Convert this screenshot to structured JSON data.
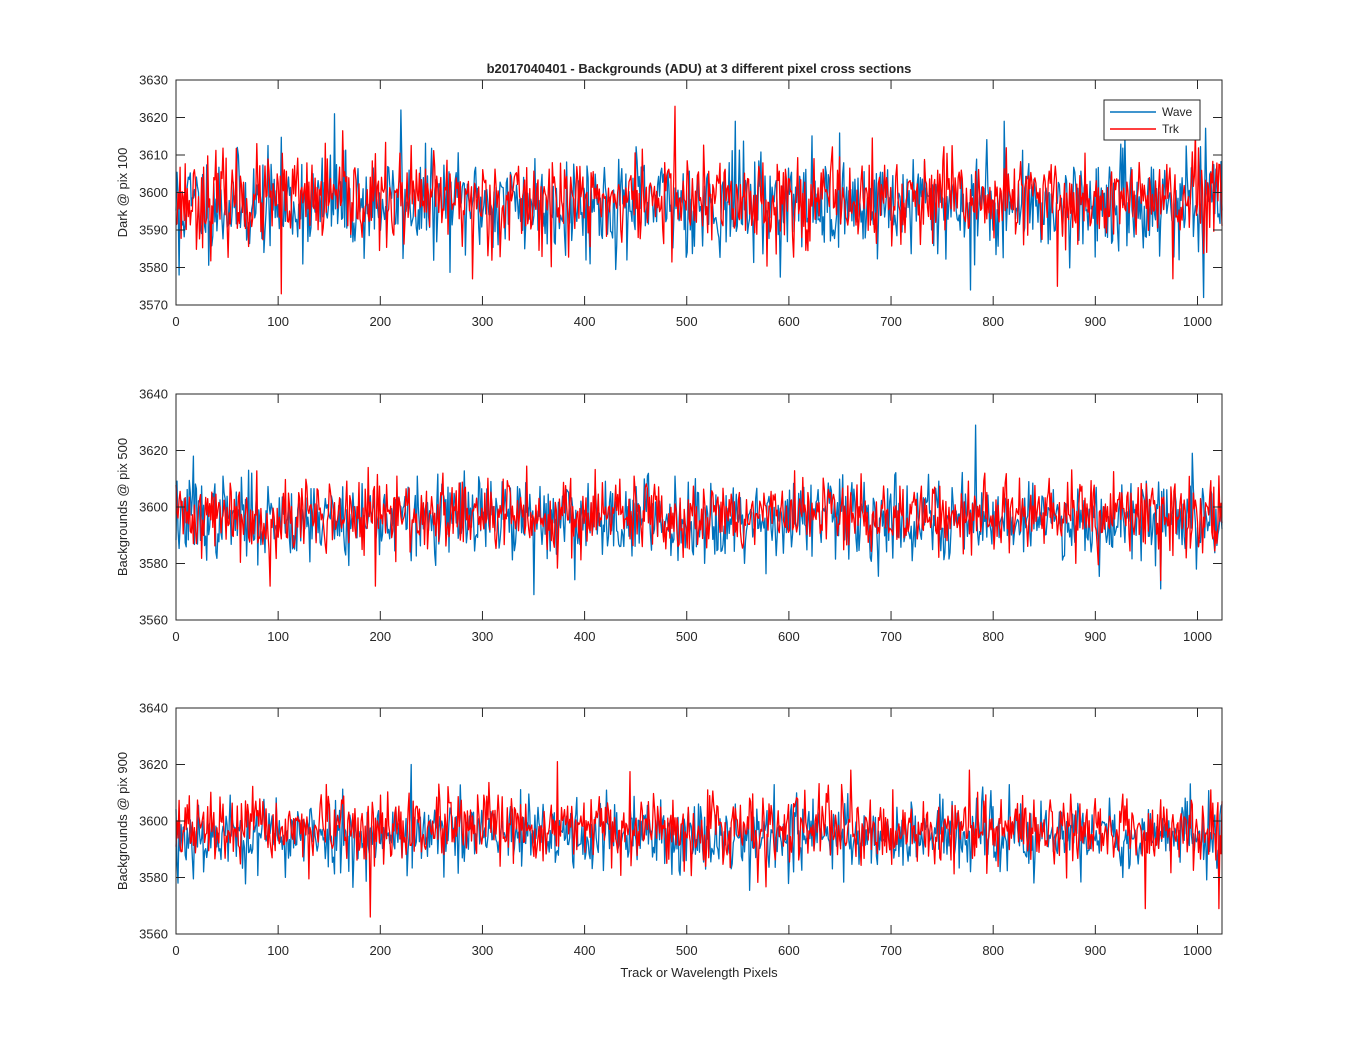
{
  "chart_data": [
    {
      "type": "line",
      "title": "b2017040401 - Backgrounds (ADU) at 3 different pixel cross sections",
      "xlabel": "",
      "ylabel": "Dark @ pix 100",
      "xlim": [
        0,
        1024
      ],
      "ylim": [
        3570,
        3630
      ],
      "xticks": [
        0,
        100,
        200,
        300,
        400,
        500,
        600,
        700,
        800,
        900,
        1000
      ],
      "yticks": [
        3570,
        3580,
        3590,
        3600,
        3610,
        3620,
        3630
      ],
      "xtick_labels": [
        "0",
        "100",
        "200",
        "300",
        "400",
        "500",
        "600",
        "700",
        "800",
        "900",
        "1000"
      ],
      "ytick_labels": [
        "3570",
        "3580",
        "3590",
        "3600",
        "3610",
        "3620",
        "3630"
      ],
      "legend": {
        "position": "top-right",
        "entries": [
          "Wave",
          "Trk"
        ]
      },
      "series": [
        {
          "name": "Wave",
          "color": "#0072BD",
          "n_points": 1024,
          "mean": 3597,
          "std": 6.5,
          "seed": 11,
          "spikes": [
            [
              3,
              3578
            ],
            [
              155,
              3621
            ],
            [
              220,
              3622
            ],
            [
              547,
              3619
            ],
            [
              777,
              3574
            ],
            [
              810,
              3619
            ],
            [
              1005,
              3572
            ]
          ]
        },
        {
          "name": "Trk",
          "color": "#FF0000",
          "n_points": 1024,
          "mean": 3598,
          "std": 6.0,
          "seed": 23,
          "spikes": [
            [
              103,
              3573
            ],
            [
              290,
              3577
            ],
            [
              488,
              3623
            ],
            [
              862,
              3575
            ],
            [
              975,
              3577
            ]
          ]
        }
      ]
    },
    {
      "type": "line",
      "title": "",
      "xlabel": "",
      "ylabel": "Backgrounds @ pix 500",
      "xlim": [
        0,
        1024
      ],
      "ylim": [
        3560,
        3640
      ],
      "xticks": [
        0,
        100,
        200,
        300,
        400,
        500,
        600,
        700,
        800,
        900,
        1000
      ],
      "yticks": [
        3560,
        3580,
        3600,
        3620,
        3640
      ],
      "xtick_labels": [
        "0",
        "100",
        "200",
        "300",
        "400",
        "500",
        "600",
        "700",
        "800",
        "900",
        "1000"
      ],
      "ytick_labels": [
        "3560",
        "3580",
        "3600",
        "3620",
        "3640"
      ],
      "series": [
        {
          "name": "Wave",
          "color": "#0072BD",
          "n_points": 1024,
          "mean": 3596,
          "std": 7.0,
          "seed": 37,
          "spikes": [
            [
              17,
              3618
            ],
            [
              350,
              3569
            ],
            [
              782,
              3629
            ],
            [
              994,
              3619
            ],
            [
              963,
              3571
            ]
          ]
        },
        {
          "name": "Trk",
          "color": "#FF0000",
          "n_points": 1024,
          "mean": 3597,
          "std": 6.5,
          "seed": 41,
          "spikes": [
            [
              92,
              3572
            ],
            [
              195,
              3572
            ],
            [
              1020,
              3611
            ],
            [
              963,
              3574
            ]
          ]
        }
      ]
    },
    {
      "type": "line",
      "title": "",
      "xlabel": "Track or Wavelength Pixels",
      "ylabel": "Backgrounds @ pix 900",
      "xlim": [
        0,
        1024
      ],
      "ylim": [
        3560,
        3640
      ],
      "xticks": [
        0,
        100,
        200,
        300,
        400,
        500,
        600,
        700,
        800,
        900,
        1000
      ],
      "yticks": [
        3560,
        3580,
        3600,
        3620,
        3640
      ],
      "xtick_labels": [
        "0",
        "100",
        "200",
        "300",
        "400",
        "500",
        "600",
        "700",
        "800",
        "900",
        "1000"
      ],
      "ytick_labels": [
        "3560",
        "3580",
        "3600",
        "3620",
        "3640"
      ],
      "series": [
        {
          "name": "Wave",
          "color": "#0072BD",
          "n_points": 1024,
          "mean": 3595,
          "std": 6.5,
          "seed": 53,
          "spikes": [
            [
              230,
              3620
            ],
            [
              2,
              3578
            ],
            [
              1020,
              3578
            ]
          ]
        },
        {
          "name": "Trk",
          "color": "#FF0000",
          "n_points": 1024,
          "mean": 3597,
          "std": 6.0,
          "seed": 67,
          "spikes": [
            [
              190,
              3566
            ],
            [
              373,
              3621
            ],
            [
              660,
              3618
            ],
            [
              776,
              3618
            ],
            [
              948,
              3569
            ],
            [
              1020,
              3569
            ]
          ]
        }
      ]
    }
  ]
}
